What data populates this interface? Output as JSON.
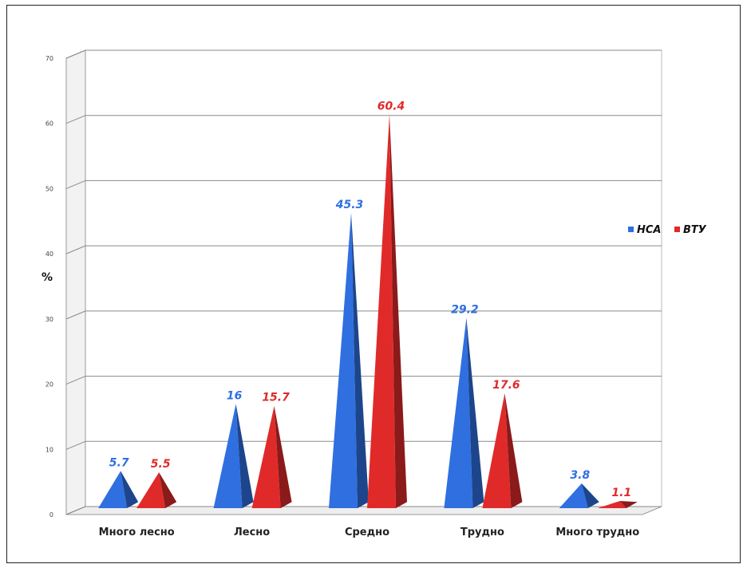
{
  "chart_data": {
    "type": "bar",
    "ylabel": "%",
    "ylim": [
      0,
      70
    ],
    "yticks": [
      0,
      10,
      20,
      30,
      40,
      50,
      60,
      70
    ],
    "categories": [
      "Много лесно",
      "Лесно",
      "Средно",
      "Трудно",
      "Много трудно"
    ],
    "series": [
      {
        "name": "НСА",
        "color": "#2f6fe0",
        "values": [
          5.7,
          16,
          45.3,
          29.2,
          3.8
        ],
        "labels": [
          "5.7",
          "16",
          "45.3",
          "29.2",
          "3.8"
        ]
      },
      {
        "name": "ВТУ",
        "color": "#e02a2a",
        "values": [
          5.5,
          15.7,
          60.4,
          17.6,
          1.1
        ],
        "labels": [
          "5.5",
          "15.7",
          "60.4",
          "17.6",
          "1.1"
        ]
      }
    ],
    "grid": true,
    "legend": "right"
  }
}
